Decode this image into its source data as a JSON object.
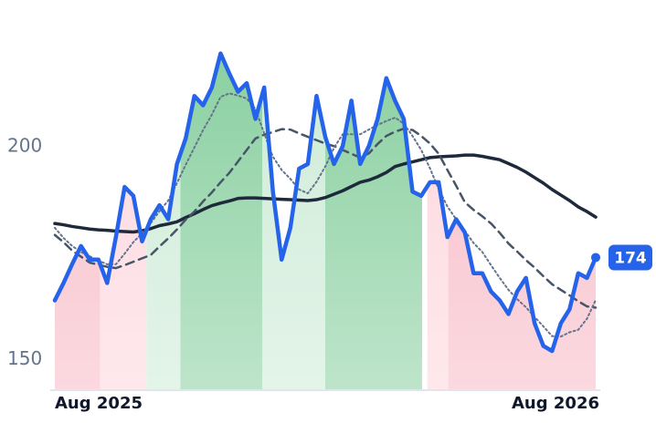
{
  "chart_data": {
    "type": "line",
    "x": [
      0,
      1,
      2,
      3,
      4,
      5,
      6,
      7,
      8,
      9,
      10,
      11,
      12,
      13,
      14,
      15,
      16,
      17,
      18,
      19,
      20,
      21,
      22,
      23,
      24,
      25,
      26,
      27,
      28,
      29,
      30,
      31,
      32,
      33,
      34,
      35,
      36,
      37,
      38,
      39,
      40,
      41,
      42,
      43,
      44,
      45,
      46,
      47,
      48,
      49,
      50,
      51,
      52,
      53,
      54,
      55,
      56,
      57,
      58,
      59,
      60,
      61,
      62
    ],
    "xlim": [
      0,
      62
    ],
    "xticks": [
      {
        "value": 0,
        "label": "Aug 2025"
      },
      {
        "value": 62,
        "label": "Aug 2026"
      }
    ],
    "ylim": [
      143,
      226
    ],
    "yticks": [
      150,
      200
    ],
    "bands": [
      {
        "from": 0,
        "to": 5.2,
        "color": "#f8bac6"
      },
      {
        "from": 5.2,
        "to": 10.5,
        "color": "#fdd6dd"
      },
      {
        "from": 10.5,
        "to": 14.4,
        "color": "#cdebd6"
      },
      {
        "from": 14.4,
        "to": 23.8,
        "color": "#88cf9f"
      },
      {
        "from": 23.8,
        "to": 31,
        "color": "#cdebd6"
      },
      {
        "from": 31,
        "to": 42.1,
        "color": "#88cf9f"
      },
      {
        "from": 42.7,
        "to": 45.1,
        "color": "#fdd6dd"
      },
      {
        "from": 45.1,
        "to": 62,
        "color": "#f8bac6"
      }
    ],
    "series": [
      {
        "color": "#1e293b",
        "dash": "solid",
        "width": 3.5,
        "values": [
          182.0,
          181.7,
          181.3,
          181.0,
          180.7,
          180.5,
          180.4,
          180.2,
          180.1,
          180.0,
          180.3,
          180.8,
          181.5,
          181.9,
          182.4,
          183.4,
          184.3,
          185.3,
          186.2,
          186.8,
          187.3,
          187.9,
          188.0,
          188.0,
          187.9,
          187.8,
          187.7,
          187.6,
          187.5,
          187.4,
          187.6,
          188.1,
          188.9,
          189.7,
          190.7,
          191.7,
          192.2,
          193.0,
          194.0,
          195.4,
          196.0,
          196.5,
          197.0,
          197.5,
          197.7,
          197.8,
          197.9,
          198.1,
          198.1,
          197.8,
          197.4,
          197.0,
          196.1,
          195.2,
          194.1,
          192.8,
          191.5,
          190.0,
          188.7,
          187.4,
          185.9,
          184.8,
          183.5
        ]
      },
      {
        "color": "#475569",
        "dash": "dashed",
        "width": 2.5,
        "values": [
          179.3,
          177.6,
          175.6,
          174.2,
          172.8,
          172.3,
          171.8,
          171.5,
          172.2,
          173.0,
          173.8,
          174.6,
          176.6,
          178.5,
          180.6,
          182.9,
          184.8,
          187.2,
          189.3,
          191.7,
          193.9,
          196.6,
          199.3,
          202.0,
          202.9,
          203.5,
          204.2,
          204.1,
          203.2,
          202.4,
          201.6,
          200.8,
          200.2,
          199.3,
          198.4,
          197.5,
          198.5,
          200.7,
          202.6,
          203.6,
          204.3,
          204.0,
          202.6,
          200.8,
          198.4,
          194.6,
          190.9,
          187.0,
          185.2,
          183.7,
          182.0,
          179.8,
          177.3,
          175.4,
          173.4,
          171.6,
          169.6,
          167.7,
          166.4,
          165.1,
          163.7,
          162.5,
          162.2
        ]
      },
      {
        "color": "#64748b",
        "dash": "dotted",
        "width": 2,
        "values": [
          181.0,
          178.6,
          176.7,
          175.3,
          174.3,
          173.3,
          172.4,
          172.4,
          174.9,
          177.6,
          179.7,
          182.1,
          184.9,
          187.4,
          191.5,
          195.8,
          199.9,
          204.0,
          207.6,
          211.8,
          212.6,
          212.1,
          211.4,
          208.9,
          203.2,
          197.7,
          194.6,
          192.5,
          190.0,
          189.1,
          191.8,
          195.4,
          199.8,
          203.0,
          203.0,
          203.0,
          204.1,
          205.2,
          206.1,
          206.9,
          205.5,
          202.6,
          199.3,
          195.0,
          190.1,
          186.0,
          183.0,
          180.3,
          177.4,
          175.3,
          172.2,
          169.2,
          166.4,
          164.2,
          162.3,
          160.0,
          157.8,
          155.5,
          155.4,
          156.4,
          157.0,
          159.6,
          164.0
        ]
      },
      {
        "color": "#2563eb",
        "dash": "solid",
        "width": 4.5,
        "price": true,
        "values": [
          163.9,
          168,
          172.5,
          176.7,
          173.5,
          173.5,
          168,
          178.8,
          190.6,
          188.5,
          177.8,
          183,
          186.3,
          183,
          196,
          202,
          212,
          209.8,
          214,
          222,
          217.3,
          213,
          215,
          206.6,
          214,
          189.5,
          173.5,
          181,
          194.9,
          196,
          212,
          202.4,
          196,
          200.2,
          210.9,
          196,
          200.2,
          206.6,
          216.2,
          210.9,
          206.6,
          189.5,
          188.5,
          191.7,
          191.7,
          178.8,
          183,
          179.9,
          170.3,
          170.3,
          166,
          163.9,
          160.7,
          166,
          169.2,
          158.5,
          153.2,
          152,
          158.5,
          161.8,
          170.3,
          169.2,
          174
        ]
      }
    ]
  }
}
